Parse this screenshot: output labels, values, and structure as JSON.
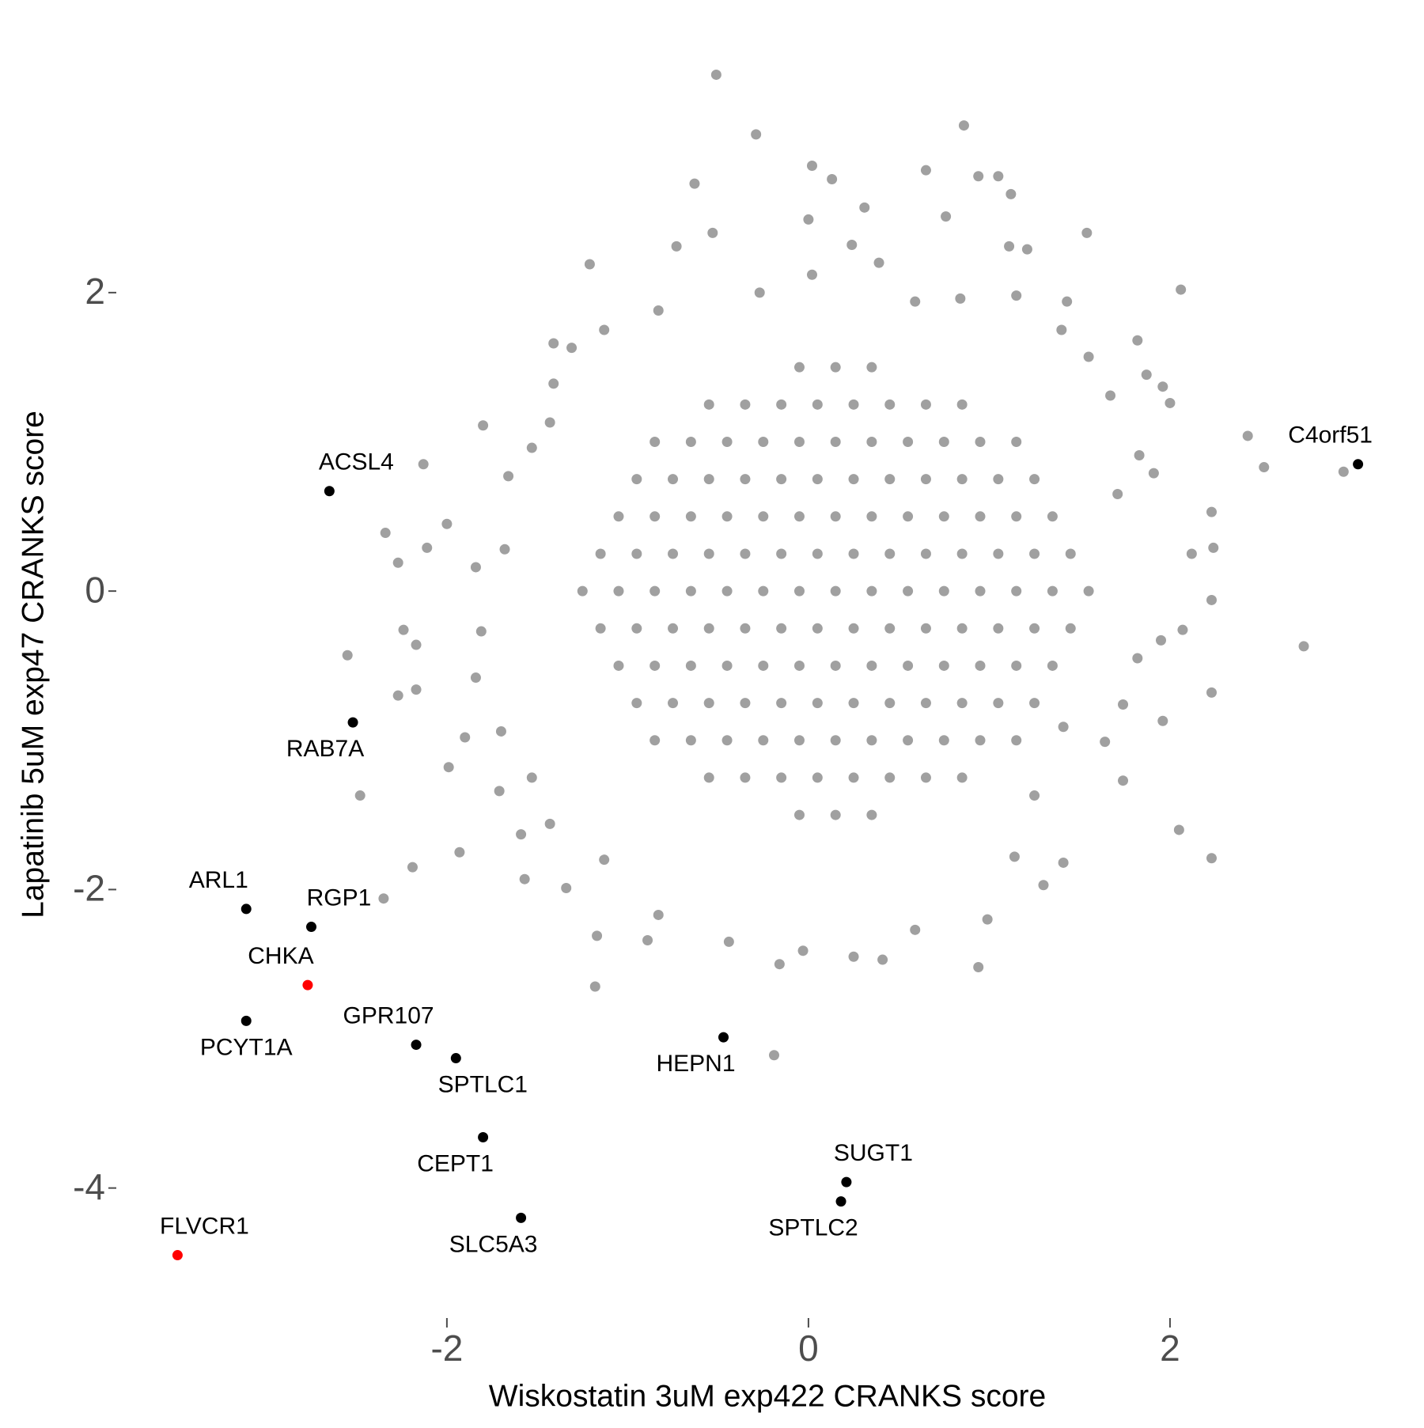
{
  "chart_data": {
    "type": "scatter",
    "x_label": "Wiskostatin 3uM exp422 CRANKS score",
    "y_label": "Lapatinib 5uM exp47 CRANKS score",
    "xlim": [
      -3.82,
      3.37
    ],
    "ylim": [
      -4.85,
      3.86
    ],
    "xticks": [
      -2,
      0,
      2
    ],
    "yticks": [
      -4,
      -2,
      0,
      2
    ],
    "grid": false,
    "series": [
      {
        "color": "#a0a0a0",
        "x": [
          -0.51,
          0.86,
          -0.29,
          0.02,
          0.13,
          0.65,
          0.94,
          1.05,
          -0.63,
          1.12,
          0.31,
          0,
          0.76,
          -0.53,
          1.54,
          -0.73,
          0.24,
          -1.21,
          2.06,
          1.11,
          1.21,
          0.39,
          2.43,
          2.52,
          2.96,
          2.74,
          2.23,
          2.24,
          2.23,
          2.23,
          2.23,
          2.05,
          1.96,
          1.74,
          1.82,
          1.87,
          -2.13,
          -2.34,
          -2.27,
          -2.11,
          -2.55,
          -2.48,
          -2.35,
          -2.19,
          -2.24,
          -2.17,
          -2.27,
          -2.17,
          -1.93,
          -1.99,
          -1.9,
          -1.8,
          -2.0,
          -1.18,
          -0.19,
          0.94,
          -0.16,
          0.41,
          0.25,
          -0.03,
          -0.44,
          -0.89,
          -1.17,
          0.59,
          0.99,
          1.3,
          1.41,
          1.14,
          1.25,
          -1.57,
          -1.34,
          -1.59,
          -1.71,
          1.67,
          1.96,
          2.0,
          2.12,
          2.07,
          1.95,
          1.74,
          1.64,
          1.41,
          1.82,
          1.91,
          1.83,
          1.71,
          -1.31,
          -1.41,
          -1.41,
          -1.43,
          -1.53,
          -1.66,
          -1.68,
          -1.84,
          -1.81,
          -1.84,
          -1.7,
          -1.53,
          -1.43,
          -1.13,
          -0.83,
          -0.83,
          -1.13,
          -0.27,
          0.02,
          0.59,
          0.84,
          1.15,
          1.43,
          1.55,
          1.4,
          -0.05,
          0.15,
          0.35,
          -0.55,
          -0.35,
          -0.15,
          0.05,
          0.25,
          0.45,
          0.65,
          0.85,
          -0.85,
          -0.65,
          -0.45,
          -0.25,
          -0.05,
          0.15,
          0.35,
          0.55,
          0.75,
          0.95,
          1.15,
          -0.95,
          -0.75,
          -0.55,
          -0.35,
          -0.15,
          0.05,
          0.25,
          0.45,
          0.65,
          0.85,
          1.05,
          1.25,
          -1.05,
          -0.85,
          -0.65,
          -0.45,
          -0.25,
          -0.05,
          0.15,
          0.35,
          0.55,
          0.75,
          0.95,
          1.15,
          1.35,
          -1.15,
          -0.95,
          -0.75,
          -0.55,
          -0.35,
          -0.15,
          0.05,
          0.25,
          0.45,
          0.65,
          0.85,
          1.05,
          1.25,
          1.45,
          -1.25,
          -1.05,
          -0.85,
          -0.65,
          -0.45,
          -0.25,
          -0.05,
          0.15,
          0.35,
          0.55,
          0.75,
          0.95,
          1.15,
          1.35,
          1.55,
          -1.15,
          -0.95,
          -0.75,
          -0.55,
          -0.35,
          -0.15,
          0.05,
          0.25,
          0.45,
          0.65,
          0.85,
          1.05,
          1.25,
          1.45,
          -1.05,
          -0.85,
          -0.65,
          -0.45,
          -0.25,
          -0.05,
          0.15,
          0.35,
          0.55,
          0.75,
          0.95,
          1.15,
          1.35,
          -0.95,
          -0.75,
          -0.55,
          -0.35,
          -0.15,
          0.05,
          0.25,
          0.45,
          0.65,
          0.85,
          1.05,
          1.25,
          -0.85,
          -0.65,
          -0.45,
          -0.25,
          -0.05,
          0.15,
          0.35,
          0.55,
          0.75,
          0.95,
          1.15,
          -0.55,
          -0.35,
          -0.15,
          0.05,
          0.25,
          0.45,
          0.65,
          0.85,
          -0.05,
          0.15,
          0.35
        ],
        "values": [
          3.46,
          3.12,
          3.06,
          2.85,
          2.76,
          2.82,
          2.78,
          2.78,
          2.73,
          2.66,
          2.57,
          2.49,
          2.51,
          2.4,
          2.4,
          2.31,
          2.32,
          2.19,
          2.02,
          2.31,
          2.29,
          2.2,
          1.04,
          0.83,
          0.8,
          -0.37,
          0.53,
          0.29,
          -0.06,
          -0.68,
          -1.79,
          -1.6,
          -0.87,
          -1.27,
          1.68,
          1.45,
          0.85,
          0.39,
          0.19,
          0.29,
          -0.43,
          -1.37,
          -2.06,
          -1.85,
          -0.26,
          -0.36,
          -0.7,
          -0.66,
          -1.75,
          -1.18,
          -0.98,
          1.11,
          0.45,
          -2.65,
          -3.11,
          -2.52,
          -2.5,
          -2.47,
          -2.45,
          -2.41,
          -2.35,
          -2.34,
          -2.31,
          -2.27,
          -2.2,
          -1.97,
          -1.82,
          -1.78,
          -1.37,
          -1.93,
          -1.99,
          -1.63,
          -1.34,
          1.31,
          1.37,
          1.26,
          0.25,
          -0.26,
          -0.33,
          -0.76,
          -1.01,
          -0.91,
          -0.45,
          0.79,
          0.91,
          0.65,
          1.63,
          1.66,
          1.39,
          1.13,
          0.96,
          0.77,
          0.28,
          0.16,
          -0.27,
          -0.58,
          -0.94,
          -1.25,
          -1.56,
          -1.8,
          -2.17,
          1.88,
          1.75,
          2.0,
          2.12,
          1.94,
          1.96,
          1.98,
          1.94,
          1.57,
          1.75,
          1.5,
          1.5,
          1.5,
          1.25,
          1.25,
          1.25,
          1.25,
          1.25,
          1.25,
          1.25,
          1.25,
          1.0,
          1.0,
          1.0,
          1.0,
          1.0,
          1.0,
          1.0,
          1.0,
          1.0,
          1.0,
          1.0,
          0.75,
          0.75,
          0.75,
          0.75,
          0.75,
          0.75,
          0.75,
          0.75,
          0.75,
          0.75,
          0.75,
          0.75,
          0.5,
          0.5,
          0.5,
          0.5,
          0.5,
          0.5,
          0.5,
          0.5,
          0.5,
          0.5,
          0.5,
          0.5,
          0.5,
          0.25,
          0.25,
          0.25,
          0.25,
          0.25,
          0.25,
          0.25,
          0.25,
          0.25,
          0.25,
          0.25,
          0.25,
          0.25,
          0.25,
          0,
          0,
          0,
          0,
          0,
          0,
          0,
          0,
          0,
          0,
          0,
          0,
          0,
          0,
          0,
          -0.25,
          -0.25,
          -0.25,
          -0.25,
          -0.25,
          -0.25,
          -0.25,
          -0.25,
          -0.25,
          -0.25,
          -0.25,
          -0.25,
          -0.25,
          -0.25,
          -0.5,
          -0.5,
          -0.5,
          -0.5,
          -0.5,
          -0.5,
          -0.5,
          -0.5,
          -0.5,
          -0.5,
          -0.5,
          -0.5,
          -0.5,
          -0.75,
          -0.75,
          -0.75,
          -0.75,
          -0.75,
          -0.75,
          -0.75,
          -0.75,
          -0.75,
          -0.75,
          -0.75,
          -0.75,
          -1.0,
          -1.0,
          -1.0,
          -1.0,
          -1.0,
          -1.0,
          -1.0,
          -1.0,
          -1.0,
          -1.0,
          -1.0,
          -1.25,
          -1.25,
          -1.25,
          -1.25,
          -1.25,
          -1.25,
          -1.25,
          -1.25,
          -1.5,
          -1.5,
          -1.5
        ]
      },
      {
        "color": "#000000",
        "labels": [
          "ACSL4",
          "C4orf51",
          "RAB7A",
          "ARL1",
          "RGP1",
          "PCYT1A",
          "GPR107",
          "SPTLC1",
          "HEPN1",
          "CEPT1",
          "SUGT1",
          "SPTLC2",
          "SLC5A3"
        ],
        "x": [
          -2.65,
          3.04,
          -2.52,
          -3.11,
          -2.75,
          -3.11,
          -2.17,
          -1.95,
          -0.47,
          -1.8,
          0.21,
          0.18,
          -1.59
        ],
        "values": [
          0.67,
          0.85,
          -0.88,
          -2.13,
          -2.25,
          -2.88,
          -3.04,
          -3.13,
          -2.99,
          -3.66,
          -3.96,
          -4.09,
          -4.2
        ]
      },
      {
        "color": "#ff0000",
        "labels": [
          "CHKA",
          "FLVCR1"
        ],
        "x": [
          -2.77,
          -3.49
        ],
        "values": [
          -2.64,
          -4.45
        ]
      }
    ]
  }
}
